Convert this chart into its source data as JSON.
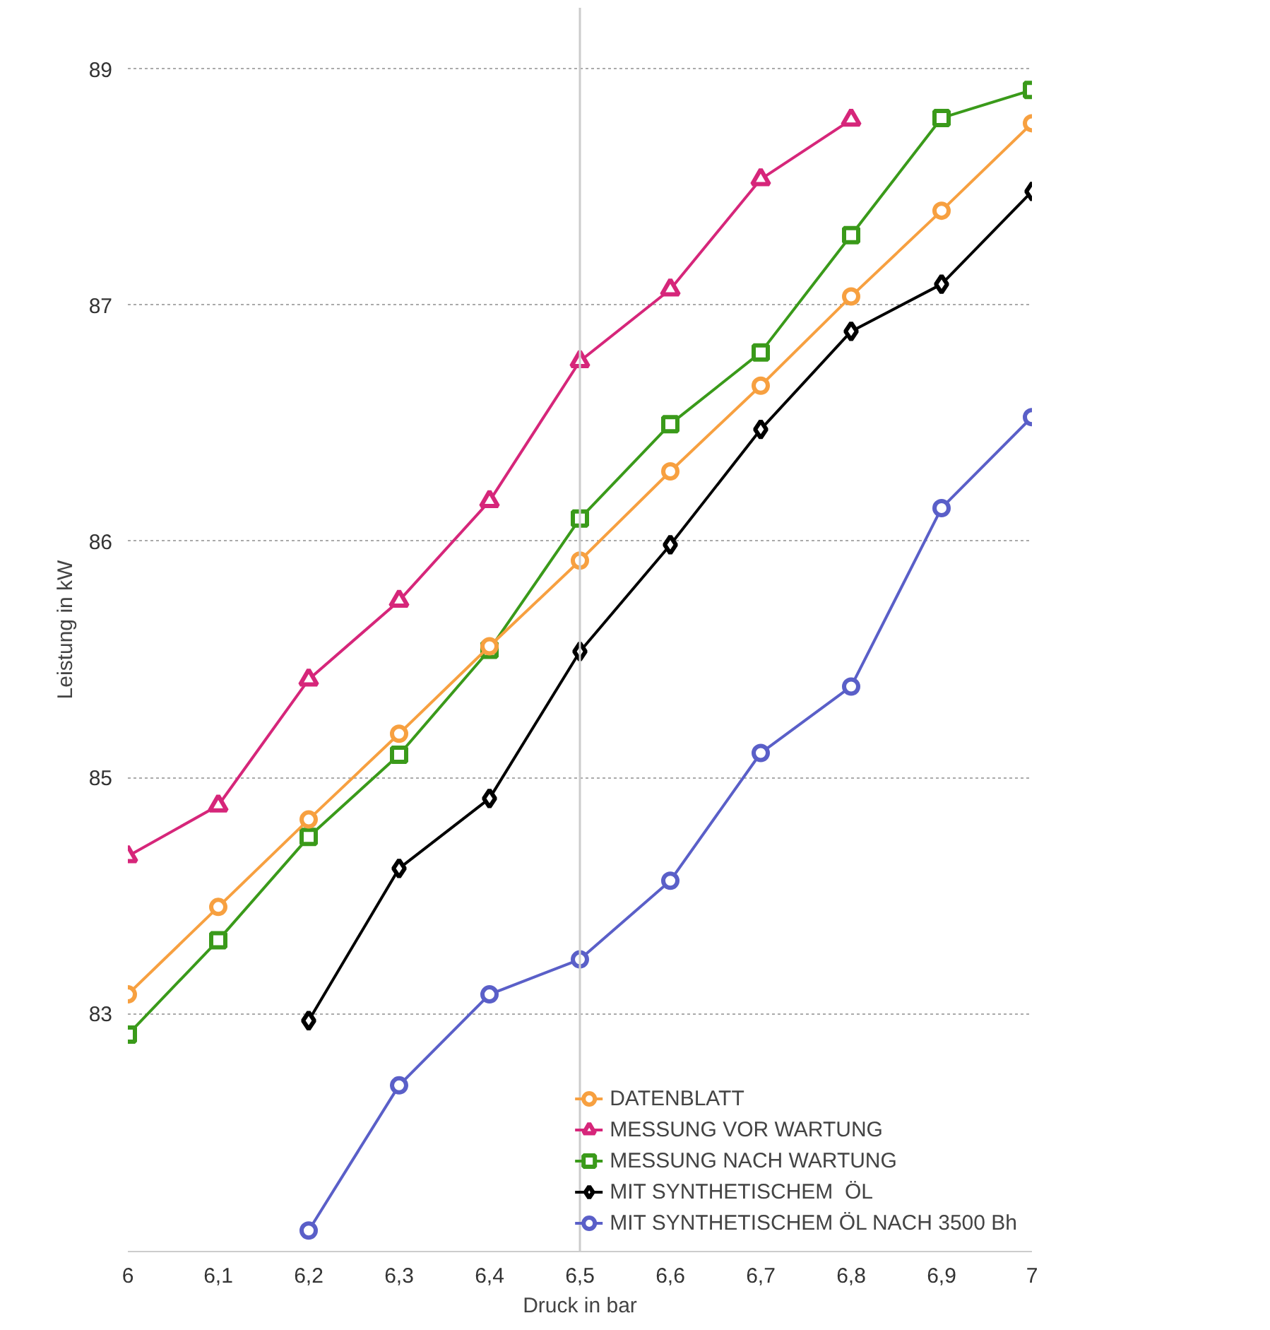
{
  "chart_data": {
    "type": "line",
    "xlabel": "Druck in bar",
    "ylabel": "Leistung in kW",
    "xlim": [
      6,
      7
    ],
    "ylim": [
      81.94,
      89.05
    ],
    "xticks": [
      6,
      {
        "value": 6.1,
        "label": "6,1"
      },
      {
        "value": 6.2,
        "label": "6,2"
      },
      {
        "value": 6.3,
        "label": "6,3"
      },
      {
        "value": 6.4,
        "label": "6,4"
      },
      {
        "value": 6.5,
        "label": "6,5"
      },
      {
        "value": 6.6,
        "label": "6,6"
      },
      {
        "value": 6.7,
        "label": "6,7"
      },
      {
        "value": 6.8,
        "label": "6,8"
      },
      {
        "value": 6.9,
        "label": "6,9"
      },
      7
    ],
    "yticks": [
      {
        "value": 83.3,
        "label": "83"
      },
      {
        "value": 84.65,
        "label": "85"
      },
      {
        "value": 86.0,
        "label": "86"
      },
      {
        "value": 87.35,
        "label": "87"
      },
      {
        "value": 88.7,
        "label": "89"
      }
    ],
    "grid": "y",
    "legend": "bottom right",
    "ref_lines": [
      {
        "axis": "x",
        "value": 6.5,
        "color": "#cccccc"
      }
    ],
    "series": [
      {
        "name": "DATENBLATT",
        "color": "#f7a040",
        "marker": "circle",
        "x": [
          6,
          6.1,
          6.2,
          6.3,
          6.4,
          6.5,
          6.6,
          6.7,
          6.8,
          6.9,
          7
        ],
        "values": [
          83.41,
          83.91,
          84.41,
          84.9,
          85.4,
          85.89,
          86.4,
          86.89,
          87.4,
          87.89,
          88.39
        ]
      },
      {
        "name": "MESSUNG VOR WARTUNG",
        "color": "#d6267a",
        "marker": "triangle",
        "x": [
          6,
          6.1,
          6.2,
          6.3,
          6.4,
          6.5,
          6.6,
          6.7,
          6.8
        ],
        "values": [
          84.2,
          84.49,
          85.21,
          85.66,
          86.23,
          87.03,
          87.44,
          88.07,
          88.41
        ]
      },
      {
        "name": "MESSUNG NACH WARTUNG",
        "color": "#3a9a1a",
        "marker": "square",
        "x": [
          6,
          6.1,
          6.2,
          6.3,
          6.4,
          6.5,
          6.6,
          6.7,
          6.8,
          6.9,
          7
        ],
        "values": [
          83.18,
          83.72,
          84.31,
          84.78,
          85.38,
          86.13,
          86.67,
          87.08,
          87.75,
          88.42,
          88.58
        ]
      },
      {
        "name": "MIT SYNTHETISCHEM  ÖL",
        "color": "#000000",
        "marker": "diamond",
        "x": [
          6.2,
          6.3,
          6.4,
          6.5,
          6.6,
          6.7,
          6.8,
          6.9,
          7
        ],
        "values": [
          83.26,
          84.13,
          84.53,
          85.37,
          85.98,
          86.64,
          87.2,
          87.47,
          88.0
        ]
      },
      {
        "name": "MIT SYNTHETISCHEM ÖL NACH 3500 Bh",
        "color": "#5a5fc8",
        "marker": "circle",
        "x": [
          6.2,
          6.3,
          6.4,
          6.5,
          6.6,
          6.7,
          6.8,
          6.9,
          7
        ],
        "values": [
          82.06,
          82.89,
          83.41,
          83.61,
          84.06,
          84.79,
          85.17,
          86.19,
          86.71
        ]
      }
    ]
  }
}
